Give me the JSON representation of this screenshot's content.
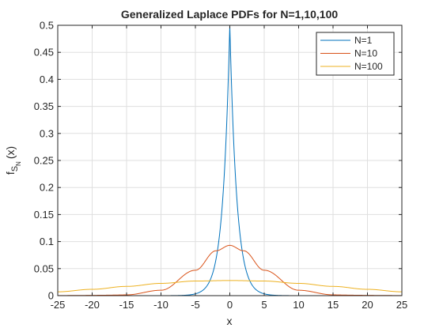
{
  "chart_data": {
    "type": "line",
    "title": "Generalized Laplace PDFs for N=1,10,100",
    "xlabel": "x",
    "ylabel": {
      "base": "f",
      "sub1": "S",
      "sub2": "N",
      "suffix": "(x)"
    },
    "xlim": [
      -25,
      25
    ],
    "ylim": [
      0,
      0.5
    ],
    "xticks": [
      -25,
      -20,
      -15,
      -10,
      -5,
      0,
      5,
      10,
      15,
      20,
      25
    ],
    "yticks": [
      0,
      0.05,
      0.1,
      0.15,
      0.2,
      0.25,
      0.3,
      0.35,
      0.4,
      0.45,
      0.5
    ],
    "grid": true,
    "legend_position": "top-right",
    "series": [
      {
        "name": "N=1",
        "color": "#0072BD",
        "peak": 0.5,
        "tail_x": [
          -10,
          -5,
          -2,
          0,
          2,
          5,
          10
        ],
        "tail_y": [
          0.0,
          0.0034,
          0.068,
          0.5,
          0.068,
          0.0034,
          0.0
        ]
      },
      {
        "name": "N=10",
        "color": "#D95319",
        "peak": 0.093,
        "x": [
          -15,
          -10,
          -5,
          -2,
          0,
          2,
          5,
          10,
          15
        ],
        "y": [
          0.0015,
          0.01,
          0.047,
          0.083,
          0.093,
          0.083,
          0.047,
          0.01,
          0.0015
        ]
      },
      {
        "name": "N=100",
        "color": "#EDB120",
        "peak": 0.028,
        "x": [
          -25,
          -20,
          -15,
          -10,
          -5,
          0,
          5,
          10,
          15,
          20,
          25
        ],
        "y": [
          0.0071,
          0.0117,
          0.0171,
          0.0227,
          0.027,
          0.028,
          0.027,
          0.0227,
          0.0171,
          0.0117,
          0.0071
        ]
      }
    ]
  }
}
